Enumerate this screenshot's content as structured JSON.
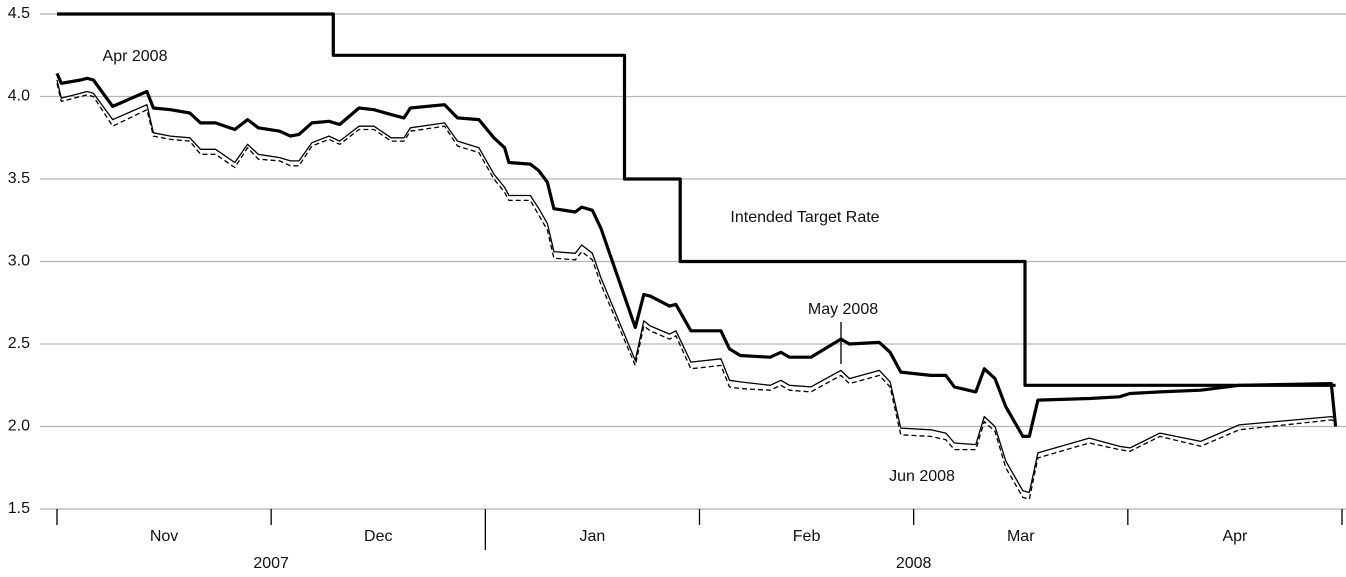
{
  "chart_data": {
    "type": "line",
    "categories": [
      "Nov",
      "Dec",
      "Jan",
      "Feb",
      "Mar",
      "Apr"
    ],
    "years": [
      "2007",
      "2008"
    ],
    "xlim": [
      0,
      6
    ],
    "ylim": [
      1.5,
      4.5
    ],
    "yticks": [
      1.5,
      {
        "value": 2,
        "label": "2.0"
      },
      2.5,
      {
        "value": 3,
        "label": "3.0"
      },
      3.5,
      {
        "value": 4,
        "label": "4.0"
      },
      4.5
    ],
    "grid": true,
    "x": [
      0,
      0.02,
      0.11,
      0.14,
      0.17,
      0.26,
      0.42,
      0.45,
      0.53,
      0.62,
      0.67,
      0.74,
      0.83,
      0.89,
      0.94,
      1.04,
      1.09,
      1.13,
      1.19,
      1.27,
      1.32,
      1.41,
      1.48,
      1.56,
      1.62,
      1.65,
      1.81,
      1.87,
      1.97,
      2.04,
      2.09,
      2.11,
      2.21,
      2.25,
      2.29,
      2.32,
      2.42,
      2.45,
      2.5,
      2.54,
      2.7,
      2.74,
      2.77,
      2.86,
      2.89,
      2.96,
      3.1,
      3.14,
      3.19,
      3.33,
      3.38,
      3.42,
      3.52,
      3.66,
      3.7,
      3.84,
      3.89,
      3.94,
      4.08,
      4.15,
      4.19,
      4.29,
      4.33,
      4.38,
      4.43,
      4.51,
      4.54,
      4.58,
      4.82,
      4.96,
      5.01,
      5.15,
      5.34,
      5.52,
      5.95,
      5.97
    ],
    "series": [
      {
        "name": "Intended Target Rate",
        "color": "#000000",
        "width": 3.2,
        "style": "solid",
        "x": [
          0,
          1.29,
          1.29,
          2.65,
          2.65,
          2.91,
          2.91,
          4.52,
          4.52,
          5.97
        ],
        "values": [
          4.5,
          4.5,
          4.25,
          4.25,
          3.5,
          3.5,
          3.0,
          3.0,
          2.25,
          2.25
        ]
      },
      {
        "name": "Apr 2008",
        "color": "#000000",
        "width": 3.2,
        "style": "solid",
        "values": [
          4.14,
          4.08,
          4.1,
          4.11,
          4.1,
          3.94,
          4.03,
          3.93,
          3.92,
          3.9,
          3.84,
          3.84,
          3.8,
          3.86,
          3.81,
          3.79,
          3.76,
          3.77,
          3.84,
          3.85,
          3.83,
          3.93,
          3.92,
          3.89,
          3.87,
          3.93,
          3.95,
          3.87,
          3.86,
          3.75,
          3.69,
          3.6,
          3.59,
          3.55,
          3.48,
          3.32,
          3.3,
          3.33,
          3.31,
          3.2,
          2.6,
          2.8,
          2.79,
          2.73,
          2.74,
          2.58,
          2.58,
          2.47,
          2.43,
          2.42,
          2.45,
          2.42,
          2.42,
          2.53,
          2.5,
          2.51,
          2.45,
          2.33,
          2.31,
          2.31,
          2.24,
          2.21,
          2.35,
          2.29,
          2.12,
          1.94,
          1.94,
          2.16,
          2.17,
          2.18,
          2.2,
          2.21,
          2.22,
          2.25,
          2.26,
          2.0
        ]
      },
      {
        "name": "May 2008",
        "color": "#000000",
        "width": 1.3,
        "style": "solid",
        "values": [
          4.1,
          3.99,
          4.02,
          4.03,
          4.02,
          3.86,
          3.95,
          3.78,
          3.76,
          3.75,
          3.68,
          3.68,
          3.6,
          3.71,
          3.65,
          3.63,
          3.61,
          3.61,
          3.72,
          3.76,
          3.73,
          3.82,
          3.82,
          3.75,
          3.75,
          3.81,
          3.84,
          3.73,
          3.69,
          3.53,
          3.45,
          3.4,
          3.4,
          3.32,
          3.23,
          3.06,
          3.05,
          3.1,
          3.05,
          2.9,
          2.4,
          2.64,
          2.61,
          2.56,
          2.58,
          2.39,
          2.41,
          2.28,
          2.27,
          2.25,
          2.28,
          2.25,
          2.24,
          2.34,
          2.29,
          2.34,
          2.27,
          1.99,
          1.98,
          1.96,
          1.9,
          1.89,
          2.06,
          2.0,
          1.79,
          1.61,
          1.6,
          1.84,
          1.93,
          1.88,
          1.87,
          1.96,
          1.91,
          2.01,
          2.06,
          2.05
        ]
      },
      {
        "name": "Jun 2008",
        "color": "#000000",
        "width": 1.3,
        "style": "dashed",
        "values": [
          4.08,
          3.97,
          4.0,
          4.01,
          4.0,
          3.82,
          3.92,
          3.76,
          3.74,
          3.73,
          3.65,
          3.65,
          3.57,
          3.69,
          3.62,
          3.61,
          3.58,
          3.58,
          3.7,
          3.74,
          3.71,
          3.8,
          3.8,
          3.73,
          3.73,
          3.79,
          3.82,
          3.7,
          3.66,
          3.5,
          3.42,
          3.37,
          3.37,
          3.28,
          3.19,
          3.02,
          3.01,
          3.06,
          3.01,
          2.86,
          2.37,
          2.61,
          2.58,
          2.53,
          2.55,
          2.35,
          2.37,
          2.24,
          2.23,
          2.22,
          2.25,
          2.22,
          2.21,
          2.31,
          2.26,
          2.31,
          2.24,
          1.95,
          1.94,
          1.92,
          1.86,
          1.86,
          2.03,
          1.97,
          1.75,
          1.57,
          1.56,
          1.81,
          1.9,
          1.86,
          1.85,
          1.94,
          1.88,
          1.98,
          2.04,
          2.03
        ]
      }
    ]
  }
}
